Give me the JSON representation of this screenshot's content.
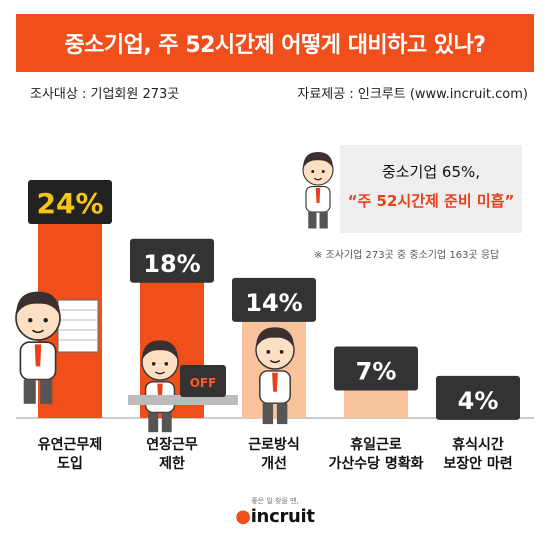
{
  "header": {
    "title": "중소기업, 주 52시간제 어떻게 대비하고 있나?",
    "survey_target": "조사대상 : 기업회원 273곳",
    "source": "자료제공 : 인크루트 (www.incruit.com)"
  },
  "callout": {
    "line1": "중소기업 65%,",
    "line2": "“주 52시간제 준비 미흡”",
    "note": "※ 조사기업 273곳 중 중소기업 163곳 응답"
  },
  "chart_data": {
    "type": "bar",
    "categories": [
      [
        "유연근무제",
        "도입"
      ],
      [
        "연장근무",
        "제한"
      ],
      [
        "근로방식",
        "개선"
      ],
      [
        "휴일근로",
        "가산수당 명확화"
      ],
      [
        "휴식시간",
        "보장안 마련"
      ]
    ],
    "values": [
      24,
      18,
      14,
      7,
      4
    ],
    "value_labels": [
      "24%",
      "18%",
      "14%",
      "7%",
      "4%"
    ],
    "ylim": [
      0,
      24
    ],
    "grid": false,
    "colors": [
      "#f04e1b",
      "#f04e1b",
      "#f8c39b",
      "#f8c39b",
      "#f8c39b"
    ],
    "label_box_colors": [
      "#222222",
      "#333333",
      "#333333",
      "#333333",
      "#333333"
    ],
    "label_text_colors": [
      "#f5c518",
      "#ffffff",
      "#ffffff",
      "#ffffff",
      "#ffffff"
    ]
  },
  "illustration": {
    "off_sign": "OFF"
  },
  "footer": {
    "tagline": "좋은 일 찾을 땐,",
    "brand": "incruit"
  }
}
